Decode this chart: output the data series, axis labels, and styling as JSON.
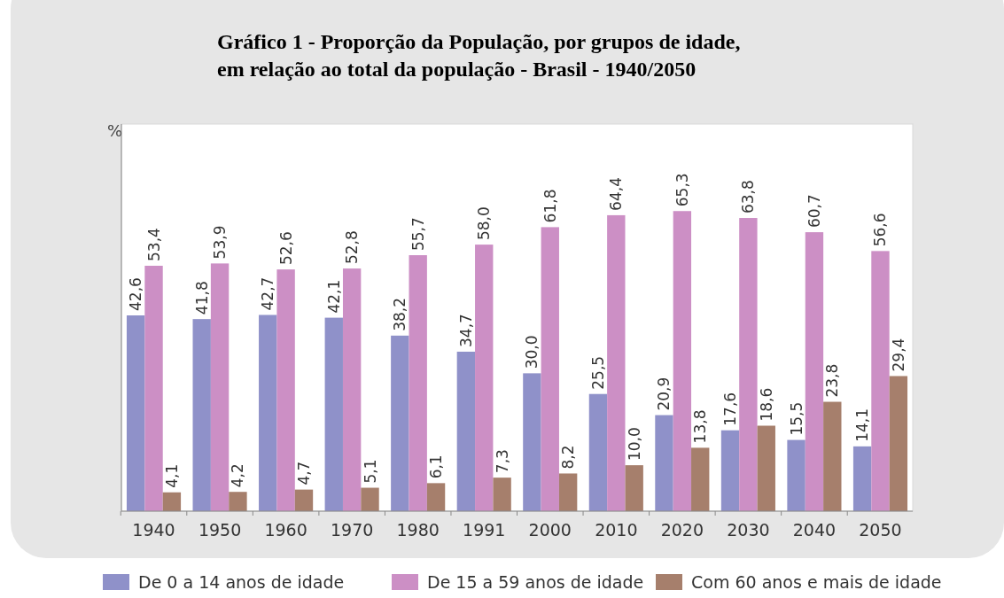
{
  "chart_data": {
    "type": "bar",
    "title": "Gráfico 1 - Proporção da População, por grupos de idade,\nem relação ao total da população - Brasil - 1940/2050",
    "ylabel": "%",
    "categories": [
      "1940",
      "1950",
      "1960",
      "1970",
      "1980",
      "1991",
      "2000",
      "2010",
      "2020",
      "2030",
      "2040",
      "2050"
    ],
    "series": [
      {
        "name": "De 0 a 14 anos de idade",
        "color": "#8f91c9",
        "values": [
          42.6,
          41.8,
          42.7,
          42.1,
          38.2,
          34.7,
          30.0,
          25.5,
          20.9,
          17.6,
          15.5,
          14.1
        ],
        "value_labels": [
          "42,6",
          "41,8",
          "42,7",
          "42,1",
          "38,2",
          "34,7",
          "30,0",
          "25,5",
          "20,9",
          "17,6",
          "15,5",
          "14,1"
        ]
      },
      {
        "name": "De 15 a 59 anos de idade",
        "color": "#cc8fc5",
        "values": [
          53.4,
          53.9,
          52.6,
          52.8,
          55.7,
          58.0,
          61.8,
          64.4,
          65.3,
          63.8,
          60.7,
          56.6
        ],
        "value_labels": [
          "53,4",
          "53,9",
          "52,6",
          "52,8",
          "55,7",
          "58,0",
          "61,8",
          "64,4",
          "65,3",
          "63,8",
          "60,7",
          "56,6"
        ]
      },
      {
        "name": "Com 60 anos e mais de idade",
        "color": "#a67f6c",
        "values": [
          4.1,
          4.2,
          4.7,
          5.1,
          6.1,
          7.3,
          8.2,
          10.0,
          13.8,
          18.6,
          23.8,
          29.4
        ],
        "value_labels": [
          "4,1",
          "4,2",
          "4,7",
          "5,1",
          "6,1",
          "7,3",
          "8,2",
          "10,0",
          "13,8",
          "18,6",
          "23,8",
          "29,4"
        ]
      }
    ],
    "tick_labels": "x",
    "legend": "bottom"
  }
}
